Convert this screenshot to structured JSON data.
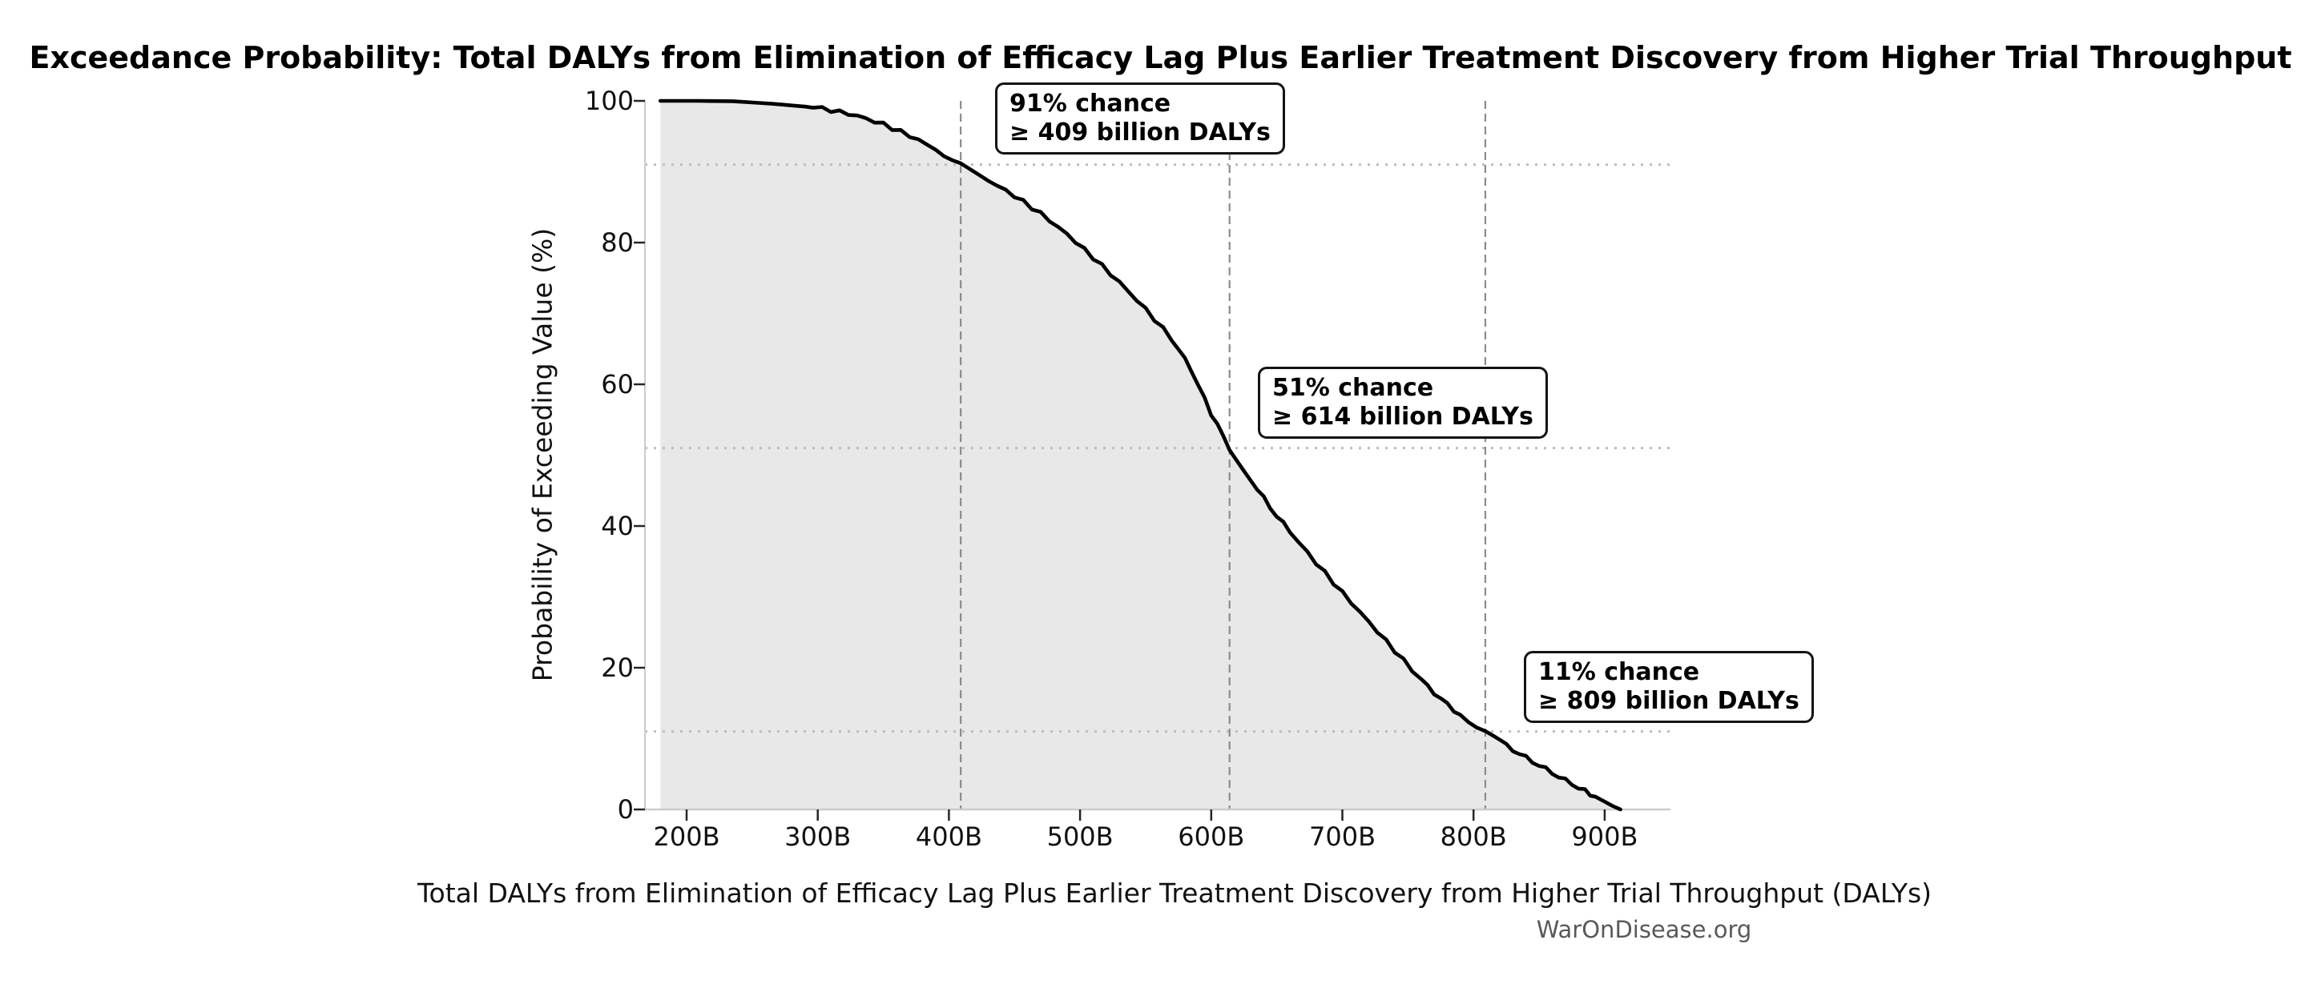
{
  "title": "Exceedance Probability: Total DALYs from Elimination of Efficacy Lag Plus Earlier Treatment Discovery from Higher Trial Throughput",
  "footer": {
    "brand": "WarOnDisease.org"
  },
  "chart_data": {
    "type": "area",
    "title": "Exceedance Probability: Total DALYs from Elimination of Efficacy Lag Plus Earlier Treatment Discovery from Higher Trial Throughput",
    "xlabel": "Total DALYs from Elimination of Efficacy Lag Plus Earlier Treatment Discovery from Higher Trial Throughput (DALYs)",
    "ylabel": "Probability of Exceeding Value (%)",
    "x_unit": "billion DALYs",
    "xlim": [
      168,
      950
    ],
    "ylim": [
      0,
      100
    ],
    "grid": "guide lines only",
    "legend": "none",
    "xticks": [
      {
        "value": 200,
        "label": "200B"
      },
      {
        "value": 300,
        "label": "300B"
      },
      {
        "value": 400,
        "label": "400B"
      },
      {
        "value": 500,
        "label": "500B"
      },
      {
        "value": 600,
        "label": "600B"
      },
      {
        "value": 700,
        "label": "700B"
      },
      {
        "value": 800,
        "label": "800B"
      },
      {
        "value": 900,
        "label": "900B"
      }
    ],
    "yticks": [
      {
        "value": 0,
        "label": "0"
      },
      {
        "value": 20,
        "label": "20"
      },
      {
        "value": 40,
        "label": "40"
      },
      {
        "value": 60,
        "label": "60"
      },
      {
        "value": 80,
        "label": "80"
      },
      {
        "value": 100,
        "label": "100"
      }
    ],
    "curve": {
      "x": [
        180,
        210,
        235,
        265,
        290,
        310,
        330,
        350,
        370,
        390,
        409,
        430,
        450,
        470,
        490,
        510,
        530,
        550,
        570,
        585,
        600,
        614,
        630,
        645,
        660,
        680,
        700,
        720,
        740,
        760,
        775,
        790,
        809,
        825,
        840,
        855,
        870,
        885,
        897,
        906,
        912
      ],
      "y": [
        100,
        100,
        99.95,
        99.6,
        99.2,
        98.7,
        97.9,
        96.7,
        95.1,
        93.2,
        91,
        88.8,
        86.6,
        84.1,
        81.2,
        77.9,
        74.4,
        70.6,
        66.4,
        62.0,
        55.8,
        51,
        46.6,
        42.6,
        39.2,
        34.8,
        30.6,
        26.5,
        22.4,
        18.3,
        15.6,
        13.3,
        11,
        9,
        7.3,
        5.7,
        4.1,
        2.6,
        1.4,
        0.5,
        0
      ]
    },
    "annotations": [
      {
        "probability_percent": 91,
        "value_billion": 409,
        "line1": "91% chance",
        "line2": "≥ 409 billion DALYs"
      },
      {
        "probability_percent": 51,
        "value_billion": 614,
        "line1": "51% chance",
        "line2": "≥ 614 billion DALYs"
      },
      {
        "probability_percent": 11,
        "value_billion": 809,
        "line1": "11% chance",
        "line2": "≥ 809 billion DALYs"
      }
    ],
    "guides": {
      "horizontal_dotted_percents": [
        91,
        51,
        11
      ],
      "vertical_dashed_values": [
        409,
        614,
        809
      ]
    },
    "colors": {
      "area_fill": "#e8e8e8",
      "curve_line": "#000000",
      "dashed_guide": "#8c8c8c",
      "dotted_guide": "#bdbdbd",
      "spine": "#cccccc",
      "tick": "#262626",
      "footer_text": "#595959"
    }
  }
}
